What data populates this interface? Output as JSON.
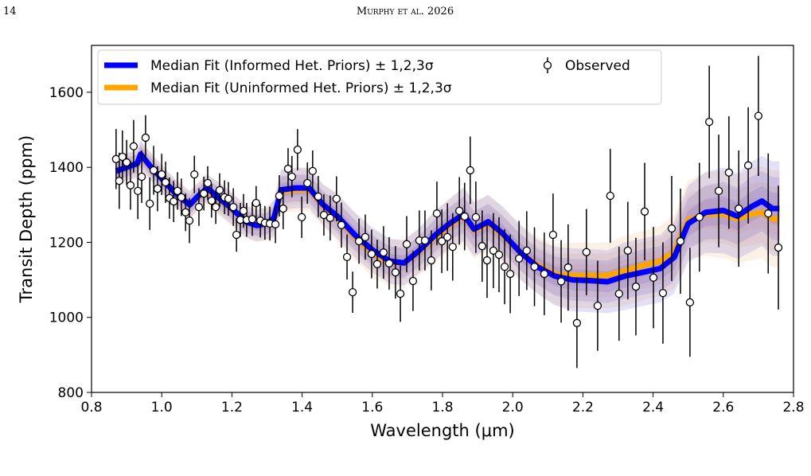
{
  "header": {
    "page": "14",
    "running_head": "Murphy et al. 2026"
  },
  "chart_data": {
    "type": "spectrum",
    "xlabel": "Wavelength (μm)",
    "ylabel": "Transit Depth (ppm)",
    "xlim": [
      0.8,
      2.8
    ],
    "ylim": [
      800,
      1725
    ],
    "xticks": [
      0.8,
      {
        "value": 1,
        "label": "1.0"
      },
      1.2,
      1.4,
      1.6,
      1.8,
      {
        "value": 2,
        "label": "2.0"
      },
      2.2,
      2.4,
      2.6,
      2.8
    ],
    "yticks": [
      800,
      1000,
      1200,
      1400,
      1600
    ],
    "legend": "upper left",
    "sigma_levels": [
      1,
      2,
      3
    ],
    "series": [
      {
        "name": "Median Fit (Uninformed Het. Priors) ± 1,2,3σ",
        "color": "#ffa500",
        "band_color": "#f0b27a",
        "x": [
          0.87,
          0.9,
          0.93,
          0.94,
          0.97,
          1.0,
          1.04,
          1.08,
          1.1,
          1.13,
          1.16,
          1.2,
          1.24,
          1.27,
          1.3,
          1.32,
          1.34,
          1.38,
          1.42,
          1.46,
          1.5,
          1.55,
          1.6,
          1.65,
          1.69,
          1.73,
          1.78,
          1.82,
          1.86,
          1.89,
          1.93,
          1.97,
          2.02,
          2.07,
          2.12,
          2.17,
          2.22,
          2.27,
          2.32,
          2.37,
          2.42,
          2.46,
          2.5,
          2.55,
          2.6,
          2.64,
          2.68,
          2.71,
          2.74,
          2.76
        ],
        "values": [
          1390,
          1400,
          1410,
          1430,
          1400,
          1370,
          1330,
          1300,
          1318,
          1340,
          1318,
          1288,
          1255,
          1245,
          1250,
          1262,
          1335,
          1340,
          1340,
          1298,
          1265,
          1215,
          1172,
          1145,
          1145,
          1172,
          1215,
          1245,
          1270,
          1232,
          1250,
          1220,
          1175,
          1140,
          1115,
          1112,
          1112,
          1112,
          1125,
          1138,
          1150,
          1175,
          1260,
          1275,
          1275,
          1262,
          1275,
          1280,
          1262,
          1262
        ],
        "sigma": [
          13,
          13,
          13,
          13,
          13,
          13,
          13,
          13,
          13,
          13,
          15,
          15,
          15,
          15,
          15,
          17,
          19,
          19,
          19,
          19,
          21,
          21,
          21,
          21,
          21,
          21,
          23,
          23,
          25,
          25,
          25,
          25,
          25,
          25,
          27,
          29,
          29,
          29,
          31,
          31,
          31,
          33,
          35,
          37,
          39,
          39,
          41,
          41,
          43,
          43
        ]
      },
      {
        "name": "Median Fit (Informed Het. Priors) ± 1,2,3σ",
        "color": "#0000ff",
        "band_color": "#6a5acd",
        "x": [
          0.87,
          0.9,
          0.93,
          0.94,
          0.97,
          1.0,
          1.04,
          1.08,
          1.1,
          1.13,
          1.16,
          1.2,
          1.24,
          1.27,
          1.3,
          1.32,
          1.34,
          1.38,
          1.42,
          1.46,
          1.5,
          1.55,
          1.6,
          1.65,
          1.69,
          1.73,
          1.78,
          1.82,
          1.86,
          1.89,
          1.93,
          1.97,
          2.02,
          2.07,
          2.12,
          2.17,
          2.22,
          2.27,
          2.32,
          2.37,
          2.42,
          2.46,
          2.5,
          2.55,
          2.6,
          2.64,
          2.68,
          2.71,
          2.74,
          2.76
        ],
        "values": [
          1390,
          1400,
          1410,
          1435,
          1400,
          1370,
          1330,
          1300,
          1320,
          1345,
          1320,
          1290,
          1255,
          1245,
          1250,
          1265,
          1340,
          1345,
          1345,
          1300,
          1270,
          1220,
          1180,
          1150,
          1145,
          1175,
          1220,
          1250,
          1275,
          1235,
          1255,
          1225,
          1175,
          1135,
          1110,
          1100,
          1098,
          1095,
          1110,
          1120,
          1130,
          1160,
          1250,
          1280,
          1285,
          1270,
          1295,
          1310,
          1290,
          1290
        ],
        "sigma": [
          12,
          12,
          12,
          12,
          12,
          12,
          12,
          12,
          12,
          12,
          14,
          14,
          14,
          14,
          14,
          16,
          18,
          18,
          18,
          18,
          20,
          20,
          20,
          20,
          20,
          20,
          22,
          22,
          24,
          24,
          24,
          24,
          24,
          24,
          26,
          28,
          28,
          28,
          30,
          30,
          30,
          32,
          34,
          36,
          38,
          38,
          40,
          40,
          42,
          42
        ]
      }
    ],
    "observed": {
      "name": "Observed",
      "x": [
        0.87,
        0.879,
        0.888,
        0.9,
        0.911,
        0.92,
        0.932,
        0.943,
        0.954,
        0.966,
        0.977,
        0.988,
        1.0,
        1.011,
        1.022,
        1.034,
        1.045,
        1.056,
        1.068,
        1.079,
        1.093,
        1.106,
        1.12,
        1.131,
        1.142,
        1.154,
        1.165,
        1.179,
        1.19,
        1.204,
        1.213,
        1.224,
        1.233,
        1.242,
        1.258,
        1.269,
        1.281,
        1.294,
        1.308,
        1.324,
        1.335,
        1.346,
        1.36,
        1.371,
        1.387,
        1.399,
        1.415,
        1.43,
        1.446,
        1.462,
        1.48,
        1.498,
        1.512,
        1.528,
        1.544,
        1.562,
        1.58,
        1.598,
        1.614,
        1.632,
        1.648,
        1.666,
        1.68,
        1.698,
        1.716,
        1.734,
        1.75,
        1.768,
        1.784,
        1.798,
        1.814,
        1.829,
        1.848,
        1.863,
        1.879,
        1.895,
        1.913,
        1.927,
        1.945,
        1.961,
        1.977,
        1.993,
        2.018,
        2.04,
        2.062,
        2.09,
        2.115,
        2.138,
        2.158,
        2.183,
        2.21,
        2.242,
        2.278,
        2.303,
        2.328,
        2.351,
        2.376,
        2.401,
        2.428,
        2.453,
        2.478,
        2.505,
        2.532,
        2.56,
        2.587,
        2.616,
        2.644,
        2.671,
        2.7,
        2.728,
        2.757
      ],
      "values": [
        1422,
        1364,
        1428,
        1413,
        1352,
        1456,
        1337,
        1375,
        1479,
        1303,
        1392,
        1343,
        1381,
        1360,
        1318,
        1309,
        1337,
        1320,
        1280,
        1258,
        1381,
        1294,
        1330,
        1358,
        1311,
        1294,
        1339,
        1320,
        1316,
        1294,
        1220,
        1260,
        1284,
        1260,
        1262,
        1305,
        1258,
        1252,
        1250,
        1248,
        1324,
        1290,
        1396,
        1375,
        1447,
        1267,
        1358,
        1390,
        1322,
        1273,
        1265,
        1316,
        1246,
        1161,
        1067,
        1203,
        1214,
        1169,
        1142,
        1173,
        1144,
        1120,
        1063,
        1195,
        1097,
        1205,
        1205,
        1152,
        1277,
        1203,
        1214,
        1188,
        1284,
        1269,
        1392,
        1267,
        1190,
        1152,
        1178,
        1167,
        1135,
        1116,
        1157,
        1178,
        1135,
        1116,
        1220,
        1096,
        1133,
        985,
        1174,
        1031,
        1324,
        1063,
        1178,
        1082,
        1282,
        1106,
        1065,
        1237,
        1203,
        1040,
        1267,
        1521,
        1337,
        1386,
        1290,
        1405,
        1537,
        1277,
        1186
      ],
      "errors": [
        80,
        75,
        70,
        60,
        65,
        70,
        75,
        70,
        60,
        70,
        65,
        60,
        55,
        55,
        55,
        55,
        50,
        50,
        50,
        60,
        50,
        50,
        45,
        45,
        45,
        45,
        45,
        45,
        45,
        50,
        45,
        45,
        45,
        45,
        45,
        45,
        45,
        45,
        45,
        50,
        55,
        55,
        55,
        55,
        55,
        55,
        55,
        55,
        55,
        55,
        60,
        60,
        60,
        60,
        55,
        60,
        60,
        65,
        65,
        70,
        70,
        70,
        75,
        75,
        80,
        80,
        80,
        80,
        85,
        85,
        90,
        90,
        90,
        90,
        90,
        95,
        95,
        100,
        100,
        100,
        100,
        105,
        100,
        105,
        105,
        110,
        110,
        110,
        115,
        120,
        115,
        120,
        125,
        125,
        130,
        130,
        130,
        135,
        135,
        140,
        140,
        145,
        145,
        150,
        150,
        150,
        155,
        155,
        160,
        160,
        165
      ]
    }
  }
}
